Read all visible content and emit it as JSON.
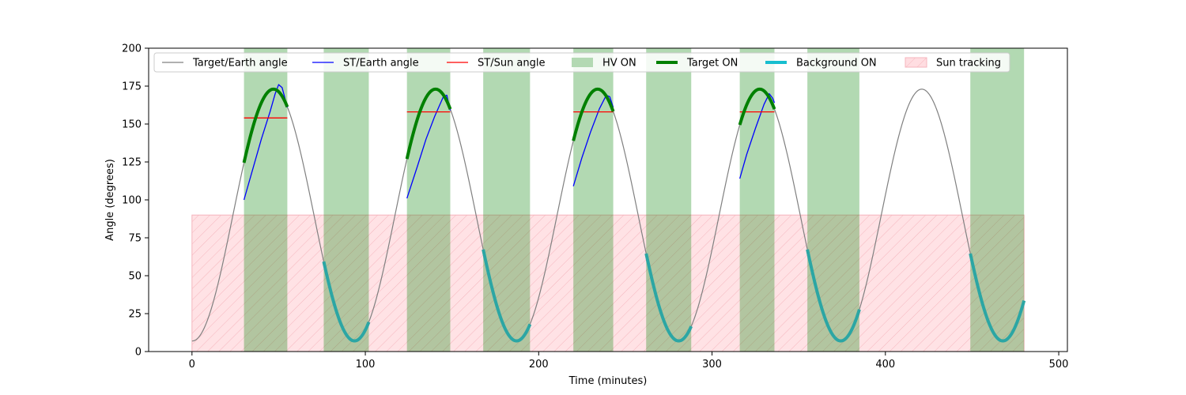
{
  "chart_data": {
    "type": "line",
    "title": "",
    "xlabel": "Time (minutes)",
    "ylabel": "Angle (degrees)",
    "xlim": [
      -25,
      505
    ],
    "ylim": [
      0,
      200
    ],
    "xticks": [
      0,
      100,
      200,
      300,
      400,
      500
    ],
    "yticks": [
      0,
      25,
      50,
      75,
      100,
      125,
      150,
      175,
      200
    ],
    "grid": false,
    "legend_position": "top",
    "legend": [
      {
        "label": "Target/Earth angle",
        "kind": "line",
        "color": "#808080"
      },
      {
        "label": "ST/Earth angle",
        "kind": "line",
        "color": "#0000ff"
      },
      {
        "label": "ST/Sun angle",
        "kind": "line",
        "color": "#ff0000"
      },
      {
        "label": "HV ON",
        "kind": "patch",
        "color": "#b3d9b3"
      },
      {
        "label": "Target ON",
        "kind": "thickline",
        "color": "#008000"
      },
      {
        "label": "Background ON",
        "kind": "thickline",
        "color": "#17becf"
      },
      {
        "label": "Sun tracking",
        "kind": "hatch",
        "color": "#ffdde1"
      }
    ],
    "colors": {
      "target_earth": "#808080",
      "st_earth": "#0000ff",
      "st_sun": "#ff0000",
      "hv_on": "#b3d9b3",
      "target_on": "#008000",
      "background_on": "#2ca6a4",
      "sun_tracking": "#ffdde1",
      "sun_tracking_hatch": "#f5b5bd"
    },
    "target_earth_angle": {
      "period_minutes": 93.5,
      "min_degrees": 7,
      "max_degrees": 173,
      "first_max_minute": 47,
      "t_start": 0,
      "t_end": 480
    },
    "hv_on_intervals": [
      [
        30,
        55
      ],
      [
        76,
        102
      ],
      [
        124,
        149
      ],
      [
        168,
        195
      ],
      [
        220,
        243
      ],
      [
        262,
        288
      ],
      [
        316,
        336
      ],
      [
        355,
        385
      ],
      [
        449,
        480
      ]
    ],
    "target_on_intervals": [
      [
        30,
        55
      ],
      [
        124,
        149
      ],
      [
        220,
        243
      ],
      [
        316,
        336
      ]
    ],
    "background_on_intervals": [
      [
        76,
        102
      ],
      [
        168,
        195
      ],
      [
        262,
        288
      ],
      [
        355,
        385
      ],
      [
        449,
        480
      ]
    ],
    "sun_tracking": {
      "intervals": [
        [
          0,
          480
        ]
      ],
      "y_range": [
        0,
        90
      ]
    },
    "st_earth_segments": [
      {
        "points": [
          [
            30,
            100
          ],
          [
            35,
            120
          ],
          [
            40,
            140
          ],
          [
            45,
            158
          ],
          [
            48,
            170
          ],
          [
            50,
            176
          ],
          [
            52,
            174
          ],
          [
            55,
            161
          ]
        ]
      },
      {
        "points": [
          [
            124,
            101
          ],
          [
            130,
            122
          ],
          [
            135,
            140
          ],
          [
            140,
            155
          ],
          [
            145,
            168
          ],
          [
            147,
            169
          ],
          [
            149,
            159
          ]
        ]
      },
      {
        "points": [
          [
            220,
            109
          ],
          [
            225,
            128
          ],
          [
            230,
            145
          ],
          [
            235,
            160
          ],
          [
            239,
            169
          ],
          [
            241,
            168
          ],
          [
            243,
            161
          ]
        ]
      },
      {
        "points": [
          [
            316,
            114
          ],
          [
            320,
            130
          ],
          [
            325,
            147
          ],
          [
            330,
            163
          ],
          [
            333,
            170
          ],
          [
            335,
            167
          ],
          [
            336,
            164
          ]
        ]
      }
    ],
    "st_sun_segments": [
      {
        "x": [
          30,
          55
        ],
        "y": 154
      },
      {
        "x": [
          124,
          149
        ],
        "y": 158
      },
      {
        "x": [
          220,
          243
        ],
        "y": 158
      },
      {
        "x": [
          316,
          336
        ],
        "y": 158
      }
    ]
  }
}
